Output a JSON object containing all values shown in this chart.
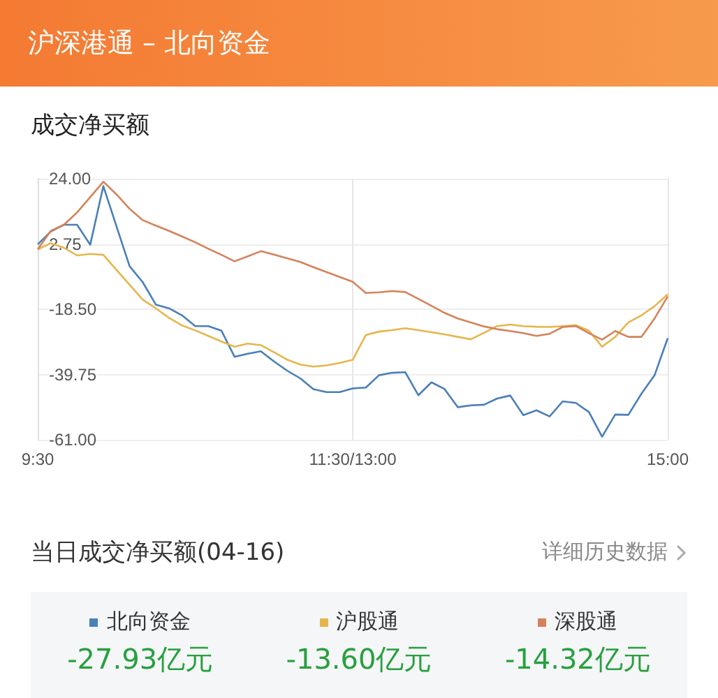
{
  "chart_data": {
    "type": "line",
    "title": "沪深港通 – 北向资金",
    "subtitle": "成交净买额",
    "annotations": [
      "当日成交净买额(04-16)",
      "详细历史数据",
      "-27.93亿元",
      "-13.60亿元",
      "-14.32亿元"
    ],
    "categories": [
      "9:30",
      null,
      null,
      null,
      null,
      null,
      null,
      null,
      null,
      null,
      null,
      null,
      null,
      null,
      null,
      null,
      null,
      null,
      null,
      null,
      null,
      null,
      null,
      null,
      "11:30/13:00",
      null,
      null,
      null,
      null,
      null,
      null,
      null,
      null,
      null,
      null,
      null,
      null,
      null,
      null,
      null,
      null,
      null,
      null,
      null,
      null,
      null,
      null,
      null,
      "15:00"
    ],
    "ylim": [
      -61,
      24
    ],
    "yticks": [
      {
        "value": 24,
        "label": "24.00"
      },
      {
        "value": 2.75,
        "label": "2.75"
      },
      {
        "value": -18.5,
        "label": "-18.50"
      },
      {
        "value": -39.75,
        "label": "-39.75"
      },
      {
        "value": -61,
        "label": "-61.00"
      }
    ],
    "grid": true,
    "legend": "bottom",
    "series": [
      {
        "name": "北向资金",
        "color": "#4a7fb8",
        "values": [
          2.6,
          6.8,
          9,
          9,
          2.5,
          21.6,
          8.5,
          -4.5,
          -9.7,
          -17,
          -18.2,
          -20.5,
          -24,
          -24,
          -25.5,
          -34,
          -33,
          -32.2,
          -35.5,
          -38.5,
          -41,
          -44.5,
          -45.5,
          -45.5,
          -44.3,
          -44,
          -40,
          -39.2,
          -39,
          -46.5,
          -42.3,
          -44.5,
          -50.4,
          -49.8,
          -49.6,
          -47.6,
          -46.6,
          -53,
          -51.4,
          -53.4,
          -48.5,
          -49,
          -52,
          -60,
          -52.8,
          -52.9,
          -46,
          -40,
          -27.93
        ]
      },
      {
        "name": "沪股通",
        "color": "#e6b64c",
        "values": [
          1,
          3,
          1.5,
          -1,
          -0.5,
          -0.8,
          -5.7,
          -10.5,
          -15.4,
          -18.2,
          -21.3,
          -23.8,
          -25.4,
          -27.2,
          -29,
          -30.7,
          -29.7,
          -30.2,
          -32.5,
          -34.9,
          -36.5,
          -37.2,
          -36.8,
          -36,
          -35,
          -26.9,
          -25.8,
          -25.3,
          -24.7,
          -25.3,
          -26,
          -26.7,
          -27.5,
          -28.3,
          -26.2,
          -24,
          -23.5,
          -24,
          -24.2,
          -24.3,
          -24,
          -23.7,
          -25.5,
          -30.7,
          -27.5,
          -22.8,
          -20.5,
          -17.5,
          -13.6
        ]
      },
      {
        "name": "深股通",
        "color": "#d5825a",
        "values": [
          1,
          7,
          9,
          13,
          18,
          23,
          18.9,
          14.2,
          10.5,
          8.7,
          7,
          5.2,
          3.3,
          1.2,
          -0.8,
          -2.9,
          -1.3,
          0.4,
          -0.7,
          -1.9,
          -3.1,
          -4.8,
          -6.4,
          -8,
          -9.6,
          -13.2,
          -13,
          -12.6,
          -12.9,
          -15.1,
          -17.4,
          -19.7,
          -21.5,
          -22.8,
          -24.1,
          -25,
          -25.6,
          -26.3,
          -27.2,
          -26.5,
          -24.3,
          -24,
          -26.3,
          -28.4,
          -25.6,
          -27.5,
          -27.5,
          -21.5,
          -14.32
        ]
      }
    ]
  }
}
